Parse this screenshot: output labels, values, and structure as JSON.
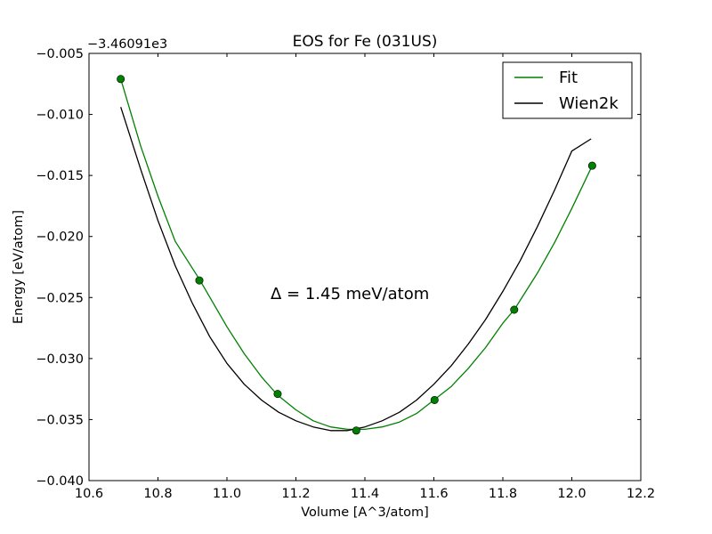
{
  "chart_data": {
    "type": "line",
    "title": "EOS for Fe (031US)",
    "xlabel": "Volume [A^3/atom]",
    "ylabel": "Energy [eV/atom]",
    "offset_label": "−3.46091e3",
    "annotation": "Δ = 1.45 meV/atom",
    "xlim": [
      10.6,
      12.2
    ],
    "ylim": [
      -0.04,
      -0.005
    ],
    "xticks": [
      10.6,
      10.8,
      11.0,
      11.2,
      11.4,
      11.6,
      11.8,
      12.0,
      12.2
    ],
    "xtick_labels": [
      "10.6",
      "10.8",
      "11.0",
      "11.2",
      "11.4",
      "11.6",
      "11.8",
      "12.0",
      "12.2"
    ],
    "yticks": [
      -0.04,
      -0.035,
      -0.03,
      -0.025,
      -0.02,
      -0.015,
      -0.01,
      -0.005
    ],
    "ytick_labels": [
      "−0.040",
      "−0.035",
      "−0.030",
      "−0.025",
      "−0.020",
      "−0.015",
      "−0.010",
      "−0.005"
    ],
    "grid": false,
    "legend_position": "top-right",
    "series": [
      {
        "name": "Fit",
        "color": "#008000",
        "style": "line",
        "x": [
          10.692,
          10.75,
          10.8,
          10.85,
          10.92,
          11.0,
          11.05,
          11.1,
          11.147,
          11.2,
          11.25,
          11.3,
          11.35,
          11.375,
          11.4,
          11.45,
          11.5,
          11.55,
          11.6,
          11.65,
          11.7,
          11.75,
          11.8,
          11.833,
          11.9,
          11.95,
          12.0,
          12.059
        ],
        "y": [
          -0.0071,
          -0.0126,
          -0.0167,
          -0.0204,
          -0.0235,
          -0.0274,
          -0.0296,
          -0.0315,
          -0.033,
          -0.0342,
          -0.0351,
          -0.0356,
          -0.0358,
          -0.0358,
          -0.0358,
          -0.0356,
          -0.0352,
          -0.0345,
          -0.0334,
          -0.0323,
          -0.0308,
          -0.0291,
          -0.0271,
          -0.026,
          -0.023,
          -0.0205,
          -0.0177,
          -0.0142
        ]
      },
      {
        "name": "Wien2k",
        "color": "#000000",
        "style": "line",
        "x": [
          10.692,
          10.75,
          10.8,
          10.85,
          10.9,
          10.95,
          11.0,
          11.05,
          11.1,
          11.15,
          11.2,
          11.25,
          11.3,
          11.35,
          11.4,
          11.45,
          11.5,
          11.55,
          11.6,
          11.65,
          11.7,
          11.75,
          11.8,
          11.85,
          11.9,
          11.95,
          12.0,
          12.056
        ],
        "y": [
          -0.0094,
          -0.0145,
          -0.0187,
          -0.0224,
          -0.0255,
          -0.0282,
          -0.0304,
          -0.0321,
          -0.0334,
          -0.0344,
          -0.0351,
          -0.0356,
          -0.0359,
          -0.0359,
          -0.0356,
          -0.0351,
          -0.0344,
          -0.0334,
          -0.0321,
          -0.0306,
          -0.0288,
          -0.0268,
          -0.0245,
          -0.022,
          -0.0192,
          -0.0162,
          -0.013,
          -0.012
        ]
      },
      {
        "name": "",
        "color": "#008000",
        "style": "markers",
        "x": [
          10.692,
          10.92,
          11.147,
          11.375,
          11.602,
          11.833,
          12.059
        ],
        "y": [
          -0.0071,
          -0.0236,
          -0.0329,
          -0.0359,
          -0.0334,
          -0.026,
          -0.0142
        ]
      }
    ],
    "legend": [
      {
        "label": "Fit",
        "color": "#008000"
      },
      {
        "label": "Wien2k",
        "color": "#000000"
      }
    ]
  }
}
